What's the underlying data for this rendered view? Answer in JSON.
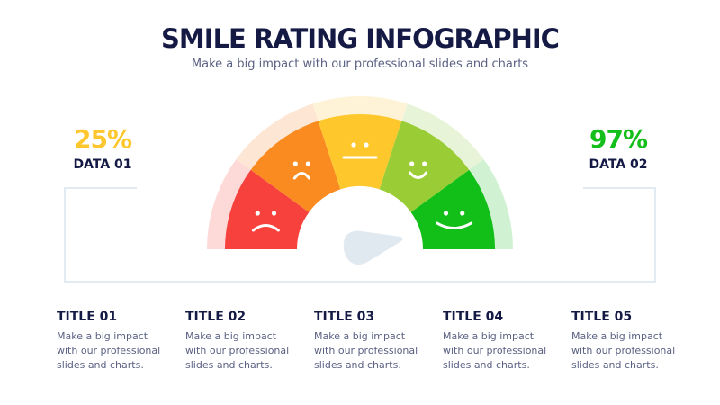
{
  "header": {
    "title": "SMILE RATING INFOGRAPHIC",
    "subtitle": "Make a big impact with our professional slides and charts"
  },
  "stats": [
    {
      "value": "25%",
      "label": "DATA 01",
      "color": "#fdc72d"
    },
    {
      "value": "97%",
      "label": "DATA 02",
      "color": "#14be1b"
    }
  ],
  "gauge": {
    "segments": [
      {
        "mood": "very-sad",
        "color": "#f7413d",
        "light": "#fdd9d8"
      },
      {
        "mood": "sad",
        "color": "#f98b21",
        "light": "#fde6d3"
      },
      {
        "mood": "neutral",
        "color": "#fec82d",
        "light": "#fff3d7"
      },
      {
        "mood": "happy",
        "color": "#9acd35",
        "light": "#e8f4d8"
      },
      {
        "mood": "very-happy",
        "color": "#12bf18",
        "light": "#d1f2d2"
      }
    ],
    "needle_color": "#e0e8f0"
  },
  "cards": [
    {
      "title": "TITLE 01",
      "text": "Make a big impact with our professional slides and charts."
    },
    {
      "title": "TITLE 02",
      "text": "Make a big impact with our professional slides and charts."
    },
    {
      "title": "TITLE 03",
      "text": "Make a big impact with our professional slides and charts."
    },
    {
      "title": "TITLE 04",
      "text": "Make a big impact with our professional slides and charts."
    },
    {
      "title": "TITLE 05",
      "text": "Make a big impact with our professional slides and charts."
    }
  ]
}
